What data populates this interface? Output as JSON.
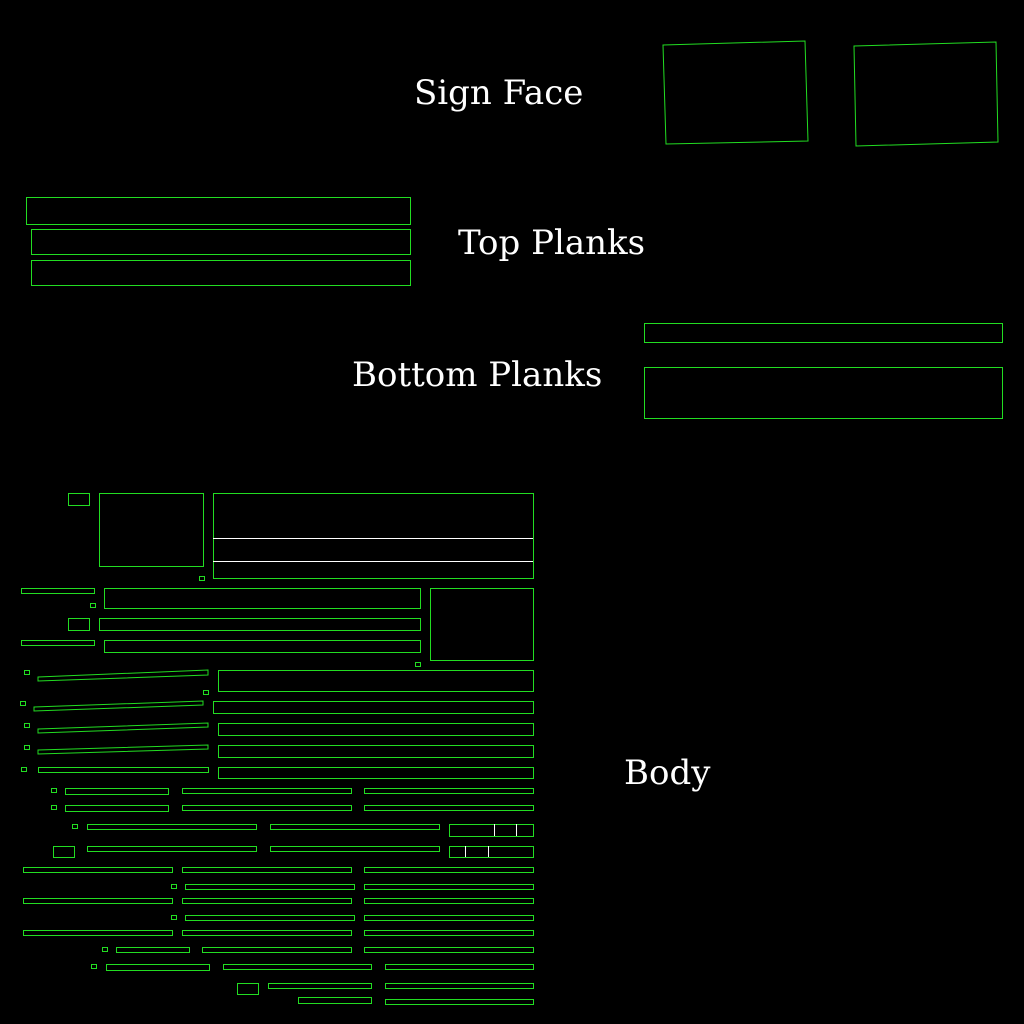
{
  "labels": {
    "sign_face": "Sign Face",
    "top_planks": "Top Planks",
    "bottom_planks": "Bottom Planks",
    "body": "Body"
  },
  "colors": {
    "background": "#000000",
    "outline": "#22dd22",
    "seam": "#ffffff",
    "text": "#ffffff"
  }
}
